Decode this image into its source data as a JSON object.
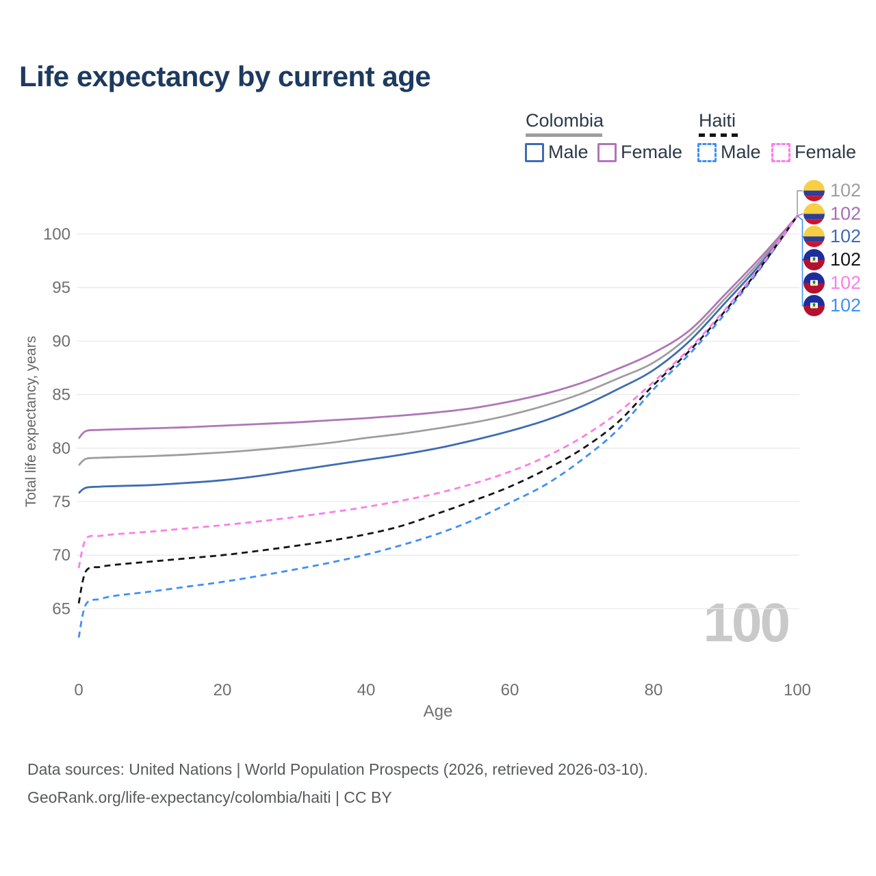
{
  "title": "Life expectancy by current age",
  "legend": {
    "groups": [
      {
        "name": "Colombia",
        "style": "solid",
        "items": [
          {
            "label": "Male"
          },
          {
            "label": "Female"
          }
        ]
      },
      {
        "name": "Haiti",
        "style": "dashed",
        "items": [
          {
            "label": "Male"
          },
          {
            "label": "Female"
          }
        ]
      }
    ]
  },
  "axes": {
    "xlabel": "Age",
    "ylabel": "Total life expectancy, years"
  },
  "age_indicator": "100",
  "footer": {
    "line1": "Data sources: United Nations | World Population Prospects (2026, retrieved 2026-03-10).",
    "line2": "GeoRank.org/life-expectancy/colombia/haiti | CC BY"
  },
  "colors": {
    "title": "#1d3a5f",
    "gridline": "#e9e9e9",
    "tick_text": "#6f6f6f",
    "watermark": "#c9c9c9"
  },
  "chart_data": {
    "type": "line",
    "title": "Life expectancy by current age",
    "xlabel": "Age",
    "ylabel": "Total life expectancy, years",
    "x_ticks": [
      0,
      20,
      40,
      60,
      80,
      100
    ],
    "y_ticks": [
      65,
      70,
      75,
      80,
      85,
      90,
      95,
      100
    ],
    "xlim": [
      0,
      100
    ],
    "ylim": [
      61,
      104
    ],
    "grid": "horizontal-only",
    "legend_position": "top-right",
    "current_age_indicator": "100",
    "series": [
      {
        "id": "colombia-total",
        "country": "Colombia",
        "sex": "Both",
        "flag": "colombia",
        "style": "solid",
        "color": "#9e9e9e",
        "end_label": "102",
        "end_label_color": "#9e9e9e",
        "points": [
          [
            0,
            78.4
          ],
          [
            1,
            79.0
          ],
          [
            3,
            79.1
          ],
          [
            5,
            79.15
          ],
          [
            10,
            79.25
          ],
          [
            15,
            79.4
          ],
          [
            20,
            79.6
          ],
          [
            25,
            79.85
          ],
          [
            30,
            80.15
          ],
          [
            35,
            80.5
          ],
          [
            40,
            80.95
          ],
          [
            45,
            81.35
          ],
          [
            50,
            81.85
          ],
          [
            55,
            82.4
          ],
          [
            60,
            83.1
          ],
          [
            65,
            84.0
          ],
          [
            70,
            85.1
          ],
          [
            75,
            86.5
          ],
          [
            80,
            88.0
          ],
          [
            85,
            90.5
          ],
          [
            90,
            94.0
          ],
          [
            95,
            97.6
          ],
          [
            100,
            101.7
          ]
        ]
      },
      {
        "id": "colombia-female",
        "country": "Colombia",
        "sex": "Female",
        "flag": "colombia",
        "style": "solid",
        "color": "#b175b8",
        "end_label": "102",
        "end_label_color": "#a86fb5",
        "points": [
          [
            0,
            80.9
          ],
          [
            1,
            81.6
          ],
          [
            3,
            81.7
          ],
          [
            5,
            81.75
          ],
          [
            10,
            81.85
          ],
          [
            15,
            81.95
          ],
          [
            20,
            82.1
          ],
          [
            25,
            82.25
          ],
          [
            30,
            82.4
          ],
          [
            35,
            82.6
          ],
          [
            40,
            82.8
          ],
          [
            45,
            83.05
          ],
          [
            50,
            83.35
          ],
          [
            55,
            83.75
          ],
          [
            60,
            84.35
          ],
          [
            65,
            85.1
          ],
          [
            70,
            86.1
          ],
          [
            75,
            87.4
          ],
          [
            80,
            88.9
          ],
          [
            85,
            91.0
          ],
          [
            90,
            94.4
          ],
          [
            95,
            97.9
          ],
          [
            100,
            101.7
          ]
        ]
      },
      {
        "id": "colombia-male",
        "country": "Colombia",
        "sex": "Male",
        "flag": "colombia",
        "style": "solid",
        "color": "#3d6cb4",
        "end_label": "102",
        "end_label_color": "#3d6cb4",
        "points": [
          [
            0,
            75.8
          ],
          [
            1,
            76.3
          ],
          [
            3,
            76.4
          ],
          [
            5,
            76.45
          ],
          [
            10,
            76.55
          ],
          [
            15,
            76.75
          ],
          [
            20,
            77.0
          ],
          [
            25,
            77.4
          ],
          [
            30,
            77.9
          ],
          [
            35,
            78.4
          ],
          [
            40,
            78.9
          ],
          [
            45,
            79.4
          ],
          [
            50,
            80.0
          ],
          [
            55,
            80.75
          ],
          [
            60,
            81.6
          ],
          [
            65,
            82.6
          ],
          [
            70,
            83.9
          ],
          [
            75,
            85.5
          ],
          [
            80,
            87.3
          ],
          [
            85,
            90.0
          ],
          [
            90,
            93.6
          ],
          [
            95,
            97.3
          ],
          [
            100,
            101.7
          ]
        ]
      },
      {
        "id": "haiti-total",
        "country": "Haiti",
        "sex": "Both",
        "flag": "haiti",
        "style": "dashed",
        "color": "#141414",
        "end_label": "102",
        "end_label_color": "#141414",
        "points": [
          [
            0,
            65.5
          ],
          [
            1,
            68.5
          ],
          [
            3,
            68.9
          ],
          [
            5,
            69.1
          ],
          [
            10,
            69.4
          ],
          [
            15,
            69.7
          ],
          [
            20,
            70.0
          ],
          [
            25,
            70.4
          ],
          [
            30,
            70.85
          ],
          [
            35,
            71.35
          ],
          [
            40,
            71.95
          ],
          [
            45,
            72.75
          ],
          [
            50,
            73.9
          ],
          [
            55,
            75.1
          ],
          [
            60,
            76.4
          ],
          [
            65,
            78.0
          ],
          [
            70,
            79.9
          ],
          [
            75,
            82.4
          ],
          [
            80,
            85.9
          ],
          [
            85,
            89.1
          ],
          [
            90,
            92.85
          ],
          [
            95,
            97.0
          ],
          [
            100,
            101.7
          ]
        ]
      },
      {
        "id": "haiti-female",
        "country": "Haiti",
        "sex": "Female",
        "flag": "haiti",
        "style": "dashed",
        "color": "#fc7de8",
        "end_label": "102",
        "end_label_color": "#fc7de8",
        "points": [
          [
            0,
            68.8
          ],
          [
            1,
            71.5
          ],
          [
            3,
            71.8
          ],
          [
            5,
            71.95
          ],
          [
            10,
            72.2
          ],
          [
            15,
            72.5
          ],
          [
            20,
            72.8
          ],
          [
            25,
            73.15
          ],
          [
            30,
            73.55
          ],
          [
            35,
            74.0
          ],
          [
            40,
            74.5
          ],
          [
            45,
            75.1
          ],
          [
            50,
            75.8
          ],
          [
            55,
            76.7
          ],
          [
            60,
            77.8
          ],
          [
            65,
            79.2
          ],
          [
            70,
            81.0
          ],
          [
            75,
            83.3
          ],
          [
            80,
            86.2
          ],
          [
            85,
            89.3
          ],
          [
            90,
            93.0
          ],
          [
            95,
            97.1
          ],
          [
            100,
            101.7
          ]
        ]
      },
      {
        "id": "haiti-male",
        "country": "Haiti",
        "sex": "Male",
        "flag": "haiti",
        "style": "dashed",
        "color": "#3f8ff7",
        "end_label": "102",
        "end_label_color": "#3f8ff7",
        "points": [
          [
            0,
            62.3
          ],
          [
            1,
            65.4
          ],
          [
            3,
            65.9
          ],
          [
            5,
            66.2
          ],
          [
            10,
            66.6
          ],
          [
            15,
            67.05
          ],
          [
            20,
            67.5
          ],
          [
            25,
            68.05
          ],
          [
            30,
            68.65
          ],
          [
            35,
            69.3
          ],
          [
            40,
            70.05
          ],
          [
            45,
            70.95
          ],
          [
            50,
            72.0
          ],
          [
            55,
            73.3
          ],
          [
            60,
            74.9
          ],
          [
            65,
            76.6
          ],
          [
            70,
            78.9
          ],
          [
            75,
            81.7
          ],
          [
            80,
            85.5
          ],
          [
            85,
            88.8
          ],
          [
            90,
            92.6
          ],
          [
            95,
            96.9
          ],
          [
            100,
            101.7
          ]
        ]
      }
    ]
  }
}
